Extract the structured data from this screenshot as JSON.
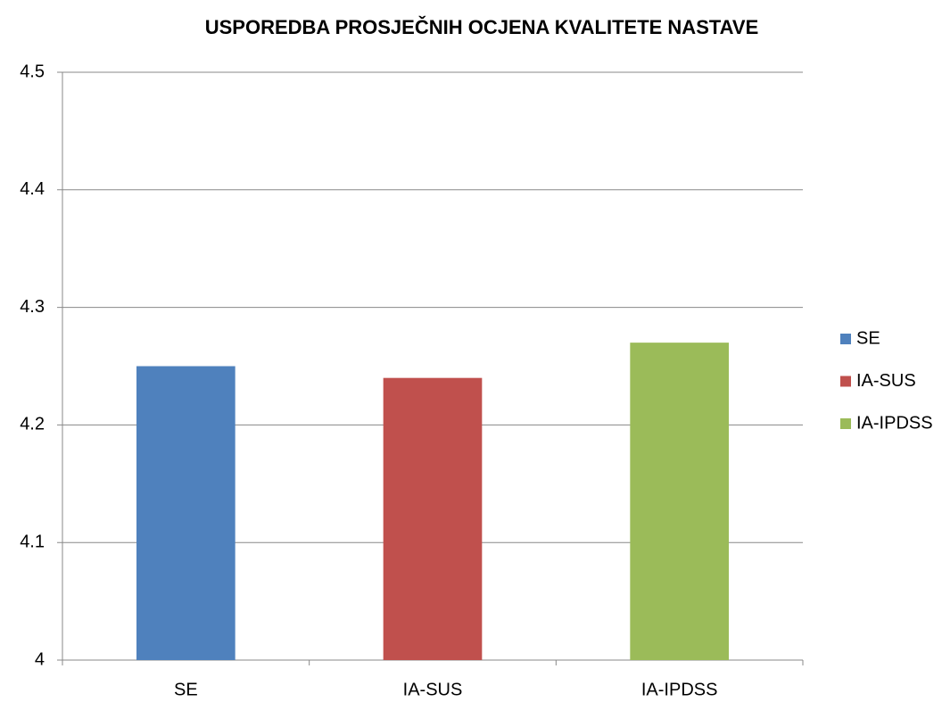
{
  "chart_data": {
    "type": "bar",
    "title": "USPOREDBA PROSJEČNIH OCJENA KVALITETE NASTAVE",
    "categories": [
      "SE",
      "IA-SUS",
      "IA-IPDSS"
    ],
    "values": [
      4.25,
      4.24,
      4.27
    ],
    "colors": [
      "#4f81bd",
      "#c0504d",
      "#9bbb59"
    ],
    "ylim": [
      4,
      4.5
    ],
    "yticks": [
      4,
      4.1,
      4.2,
      4.3,
      4.4,
      4.5
    ],
    "grid": true,
    "legend": "right"
  }
}
